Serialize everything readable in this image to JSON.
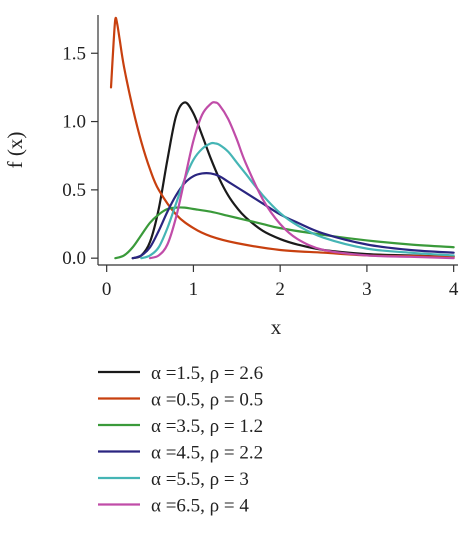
{
  "chart_data": {
    "type": "line",
    "xlabel": "x",
    "ylabel": "f (x)",
    "xlim": [
      -0.1,
      4.05
    ],
    "ylim": [
      -0.05,
      1.78
    ],
    "xticks": [
      "0",
      "1",
      "2",
      "3",
      "4"
    ],
    "xtick_values": [
      0,
      1,
      2,
      3,
      4
    ],
    "yticks": [
      "0.0",
      "0.5",
      "1.0",
      "1.5"
    ],
    "ytick_values": [
      0,
      0.5,
      1.0,
      1.5
    ],
    "grid": false,
    "legend_position": "below",
    "series": [
      {
        "name": "α =1.5, ρ = 2.6",
        "color": "#1a1a1a",
        "x": [
          0.3,
          0.4,
          0.5,
          0.6,
          0.7,
          0.8,
          0.9,
          1.0,
          1.1,
          1.2,
          1.3,
          1.4,
          1.5,
          1.6,
          1.8,
          2.0,
          2.2,
          2.5,
          3.0,
          3.5,
          4.0
        ],
        "y": [
          0.0,
          0.02,
          0.12,
          0.36,
          0.72,
          1.04,
          1.14,
          1.06,
          0.9,
          0.73,
          0.58,
          0.46,
          0.37,
          0.3,
          0.2,
          0.14,
          0.1,
          0.06,
          0.03,
          0.02,
          0.01
        ]
      },
      {
        "name": "α =0.5, ρ = 0.5",
        "color": "#c8400f",
        "x": [
          0.05,
          0.08,
          0.1,
          0.12,
          0.15,
          0.2,
          0.3,
          0.4,
          0.5,
          0.6,
          0.8,
          1.0,
          1.2,
          1.5,
          2.0,
          2.5,
          3.0,
          3.5,
          4.0
        ],
        "y": [
          1.25,
          1.58,
          1.75,
          1.72,
          1.6,
          1.4,
          1.1,
          0.85,
          0.65,
          0.5,
          0.32,
          0.22,
          0.16,
          0.11,
          0.06,
          0.04,
          0.02,
          0.015,
          0.01
        ]
      },
      {
        "name": "α =3.5, ρ = 1.2",
        "color": "#3a9a3a",
        "x": [
          0.1,
          0.2,
          0.3,
          0.4,
          0.5,
          0.6,
          0.7,
          0.8,
          0.9,
          1.0,
          1.2,
          1.4,
          1.6,
          1.8,
          2.0,
          2.5,
          3.0,
          3.5,
          4.0
        ],
        "y": [
          0.0,
          0.02,
          0.08,
          0.17,
          0.26,
          0.32,
          0.36,
          0.37,
          0.37,
          0.36,
          0.34,
          0.31,
          0.28,
          0.25,
          0.22,
          0.17,
          0.13,
          0.1,
          0.08
        ]
      },
      {
        "name": "α =4.5, ρ = 2.2",
        "color": "#2a2580",
        "x": [
          0.3,
          0.4,
          0.5,
          0.6,
          0.7,
          0.8,
          0.9,
          1.0,
          1.1,
          1.2,
          1.3,
          1.4,
          1.6,
          1.8,
          2.0,
          2.2,
          2.5,
          3.0,
          3.5,
          4.0
        ],
        "y": [
          0.0,
          0.02,
          0.08,
          0.2,
          0.34,
          0.46,
          0.55,
          0.6,
          0.62,
          0.62,
          0.6,
          0.56,
          0.48,
          0.4,
          0.32,
          0.26,
          0.18,
          0.1,
          0.06,
          0.04
        ]
      },
      {
        "name": "α =5.5, ρ = 3",
        "color": "#45b5b5",
        "x": [
          0.4,
          0.5,
          0.6,
          0.7,
          0.8,
          0.9,
          1.0,
          1.1,
          1.2,
          1.25,
          1.3,
          1.4,
          1.5,
          1.6,
          1.8,
          2.0,
          2.2,
          2.5,
          3.0,
          3.5,
          4.0
        ],
        "y": [
          0.0,
          0.02,
          0.08,
          0.22,
          0.4,
          0.58,
          0.72,
          0.8,
          0.84,
          0.84,
          0.83,
          0.78,
          0.7,
          0.62,
          0.46,
          0.33,
          0.24,
          0.15,
          0.07,
          0.04,
          0.02
        ]
      },
      {
        "name": "α =6.5, ρ = 4",
        "color": "#c04ca8",
        "x": [
          0.5,
          0.6,
          0.7,
          0.8,
          0.9,
          1.0,
          1.1,
          1.2,
          1.25,
          1.3,
          1.4,
          1.5,
          1.6,
          1.8,
          2.0,
          2.2,
          2.5,
          3.0,
          3.5,
          4.0
        ],
        "y": [
          0.0,
          0.02,
          0.1,
          0.3,
          0.58,
          0.86,
          1.05,
          1.13,
          1.14,
          1.12,
          1.02,
          0.87,
          0.7,
          0.43,
          0.25,
          0.14,
          0.06,
          0.02,
          0.01,
          0.0
        ]
      }
    ]
  }
}
